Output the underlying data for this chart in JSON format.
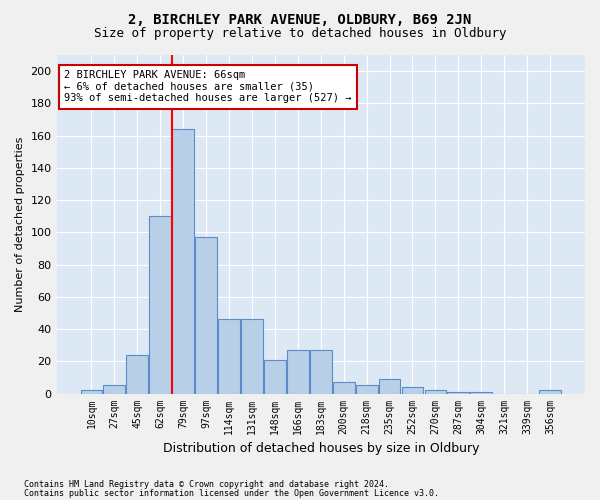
{
  "title1": "2, BIRCHLEY PARK AVENUE, OLDBURY, B69 2JN",
  "title2": "Size of property relative to detached houses in Oldbury",
  "xlabel": "Distribution of detached houses by size in Oldbury",
  "ylabel": "Number of detached properties",
  "categories": [
    "10sqm",
    "27sqm",
    "45sqm",
    "62sqm",
    "79sqm",
    "97sqm",
    "114sqm",
    "131sqm",
    "148sqm",
    "166sqm",
    "183sqm",
    "200sqm",
    "218sqm",
    "235sqm",
    "252sqm",
    "270sqm",
    "287sqm",
    "304sqm",
    "321sqm",
    "339sqm",
    "356sqm"
  ],
  "values": [
    2,
    5,
    24,
    110,
    164,
    97,
    46,
    46,
    21,
    27,
    27,
    7,
    5,
    9,
    4,
    2,
    1,
    1,
    0,
    0,
    2
  ],
  "bar_color": "#b8cfe8",
  "bar_edge_color": "#5b8cc8",
  "red_line_x": 3.5,
  "annotation_text": "2 BIRCHLEY PARK AVENUE: 66sqm\n← 6% of detached houses are smaller (35)\n93% of semi-detached houses are larger (527) →",
  "annotation_box_color": "#ffffff",
  "annotation_box_edge": "#cc0000",
  "ylim": [
    0,
    210
  ],
  "yticks": [
    0,
    20,
    40,
    60,
    80,
    100,
    120,
    140,
    160,
    180,
    200
  ],
  "footer1": "Contains HM Land Registry data © Crown copyright and database right 2024.",
  "footer2": "Contains public sector information licensed under the Open Government Licence v3.0.",
  "plot_bg_color": "#dde8f5",
  "fig_bg_color": "#f0f0f0"
}
